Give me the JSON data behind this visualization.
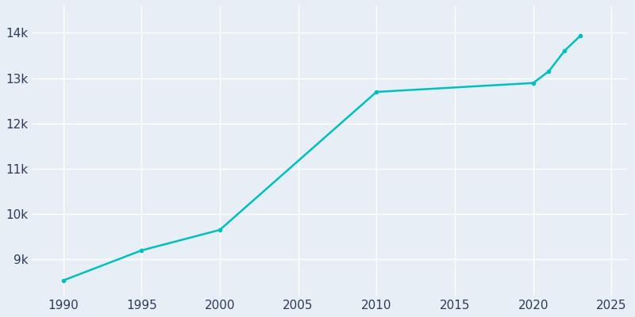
{
  "years": [
    1990,
    1995,
    2000,
    2010,
    2020,
    2021,
    2022,
    2023
  ],
  "population": [
    8536,
    9200,
    9652,
    12695,
    12891,
    13150,
    13600,
    13930
  ],
  "line_color": "#00bfc0",
  "marker_color": "#00bfc0",
  "bg_color": "#e8eef5",
  "grid_color": "#ffffff",
  "tick_color": "#2d3a5c",
  "xlim": [
    1988,
    2026
  ],
  "ylim": [
    8200,
    14600
  ],
  "yticks": [
    9000,
    10000,
    11000,
    12000,
    13000,
    14000
  ],
  "ytick_labels": [
    "9k",
    "10k",
    "11k",
    "12k",
    "13k",
    "14k"
  ],
  "xticks": [
    1990,
    1995,
    2000,
    2005,
    2010,
    2015,
    2020,
    2025
  ],
  "figsize": [
    8.0,
    4.0
  ],
  "dpi": 100
}
